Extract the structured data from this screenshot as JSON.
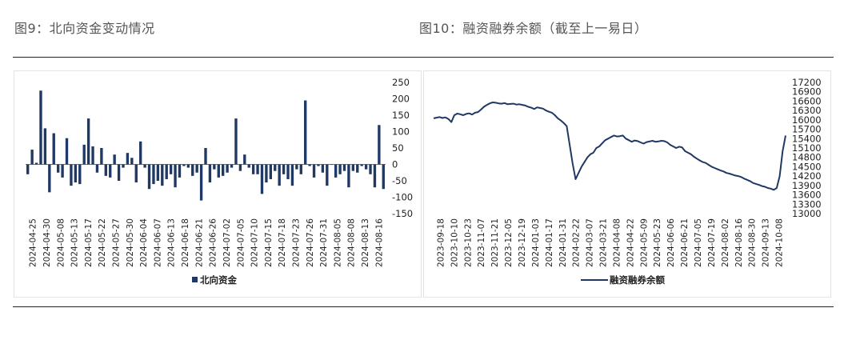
{
  "figures": {
    "left_title": "图9：北向资金变动情况",
    "right_title": "图10：融资融券余额（截至上一易日）"
  },
  "chart_data": [
    {
      "type": "bar",
      "legend": "北向资金",
      "legend_position": "bottom-center",
      "color": "#1f3864",
      "ylim": [
        -150,
        250
      ],
      "yticks": [
        250,
        200,
        150,
        100,
        50,
        0,
        -50,
        -100,
        -150
      ],
      "y_axis_side": "right",
      "xtick_labels": [
        "2024-04-25",
        "2024-04-30",
        "2024-05-08",
        "2024-05-13",
        "2024-05-17",
        "2024-05-22",
        "2024-05-27",
        "2024-05-30",
        "2024-06-04",
        "2024-06-07",
        "2024-06-13",
        "2024-06-18",
        "2024-06-21",
        "2024-06-26",
        "2024-07-02",
        "2024-07-05",
        "2024-07-10",
        "2024-07-15",
        "2024-07-18",
        "2024-07-23",
        "2024-07-26",
        "2024-07-31",
        "2024-08-05",
        "2024-08-08",
        "2024-08-13",
        "2024-08-16"
      ],
      "values": [
        -30,
        45,
        5,
        225,
        110,
        -85,
        95,
        -25,
        -40,
        80,
        -65,
        -55,
        -60,
        60,
        140,
        55,
        -25,
        50,
        -35,
        -40,
        30,
        -50,
        -10,
        35,
        20,
        -55,
        70,
        -10,
        -75,
        -60,
        -50,
        -65,
        -45,
        -30,
        -70,
        -40,
        -5,
        -10,
        -35,
        -25,
        -110,
        50,
        -55,
        -15,
        -40,
        -35,
        -25,
        -10,
        140,
        -20,
        30,
        -10,
        -30,
        -30,
        -90,
        -55,
        -45,
        -20,
        -65,
        -30,
        -45,
        -65,
        -15,
        -30,
        195,
        -5,
        -40,
        -5,
        -25,
        -65,
        0,
        -40,
        -30,
        -20,
        -70,
        -20,
        -25,
        -5,
        -15,
        -30,
        -70,
        120,
        -75
      ]
    },
    {
      "type": "line",
      "legend": "融资融券余额",
      "legend_position": "bottom-center",
      "color": "#1f3864",
      "ylim": [
        13000,
        17200
      ],
      "yticks": [
        17200,
        16900,
        16600,
        16300,
        16000,
        15700,
        15400,
        15100,
        14800,
        14500,
        14200,
        13900,
        13600,
        13300,
        13000
      ],
      "y_axis_side": "right",
      "xtick_labels": [
        "2023-09-18",
        "2023-10-10",
        "2023-10-23",
        "2023-11-07",
        "2023-11-21",
        "2023-12-05",
        "2023-12-19",
        "2024-01-03",
        "2024-01-17",
        "2024-01-31",
        "2024-02-22",
        "2024-03-07",
        "2024-03-21",
        "2024-04-08",
        "2024-04-22",
        "2024-05-09",
        "2024-05-23",
        "2024-06-06",
        "2024-06-21",
        "2024-07-05",
        "2024-07-19",
        "2024-08-02",
        "2024-08-16",
        "2024-08-30",
        "2024-09-13",
        "2024-10-08"
      ],
      "values": [
        16050,
        16070,
        16090,
        16060,
        16080,
        16030,
        15930,
        16150,
        16200,
        16180,
        16150,
        16190,
        16210,
        16170,
        16230,
        16250,
        16330,
        16420,
        16480,
        16530,
        16560,
        16550,
        16530,
        16520,
        16540,
        16500,
        16510,
        16520,
        16490,
        16500,
        16480,
        16460,
        16420,
        16390,
        16350,
        16400,
        16380,
        16360,
        16300,
        16260,
        16230,
        16150,
        16050,
        15980,
        15900,
        15800,
        15200,
        14600,
        14100,
        14300,
        14500,
        14650,
        14800,
        14900,
        14950,
        15100,
        15150,
        15250,
        15350,
        15400,
        15450,
        15500,
        15470,
        15480,
        15500,
        15400,
        15350,
        15300,
        15340,
        15320,
        15280,
        15240,
        15290,
        15310,
        15330,
        15300,
        15310,
        15330,
        15320,
        15280,
        15200,
        15150,
        15100,
        15140,
        15120,
        15000,
        14950,
        14900,
        14820,
        14760,
        14700,
        14650,
        14620,
        14560,
        14500,
        14460,
        14420,
        14380,
        14350,
        14300,
        14280,
        14250,
        14220,
        14200,
        14170,
        14120,
        14080,
        14040,
        13980,
        13950,
        13920,
        13880,
        13860,
        13820,
        13800,
        13760,
        13820,
        14200,
        15000,
        15500
      ]
    }
  ]
}
